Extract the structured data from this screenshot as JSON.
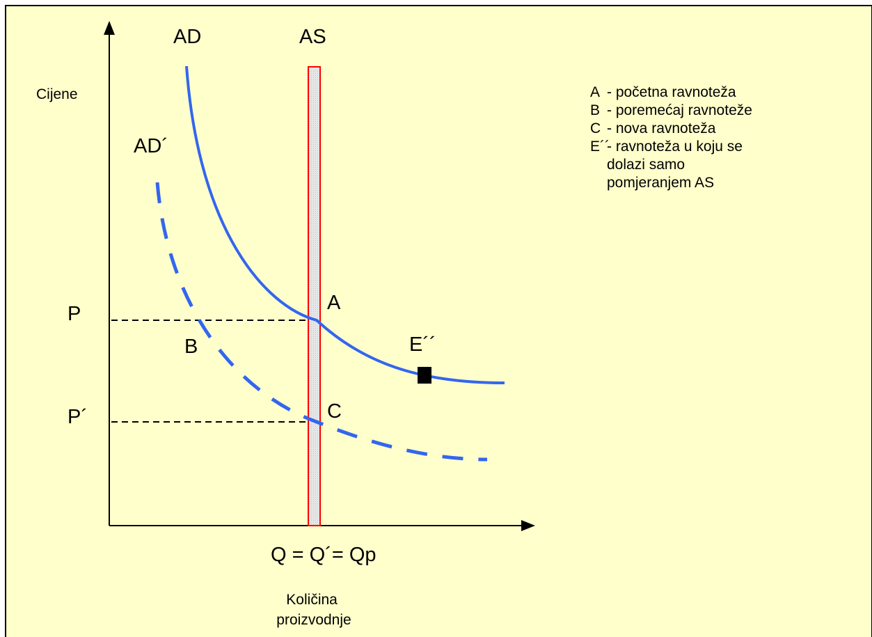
{
  "diagram": {
    "colors": {
      "background": "#ffffcc",
      "frame": "#000000",
      "curve": "#3366ee",
      "as_outline": "#ff0000",
      "as_fill": "#e8e8e8",
      "marker": "#000000"
    },
    "axis_y_label": "Cijene",
    "axis_x_label": "Količina proizvodnje",
    "curve_labels": {
      "ad": "AD",
      "ad_prime": "AD´",
      "as": "AS"
    },
    "price_labels": {
      "p": "P",
      "p_prime": "P´"
    },
    "quantity_label": "Q = Q´= Qp",
    "point_labels": {
      "a": "A",
      "b": "B",
      "c": "C",
      "e": "E´´"
    },
    "legend": [
      {
        "key": "A",
        "text": "- početna ravnoteža"
      },
      {
        "key": "B",
        "text": "- poremećaj ravnoteže"
      },
      {
        "key": "C",
        "text": "- nova ravnoteža"
      },
      {
        "key": "E´´",
        "text": "- ravnoteža u koju se\n  dolazi samo\n  pomjeranjem AS"
      }
    ]
  }
}
